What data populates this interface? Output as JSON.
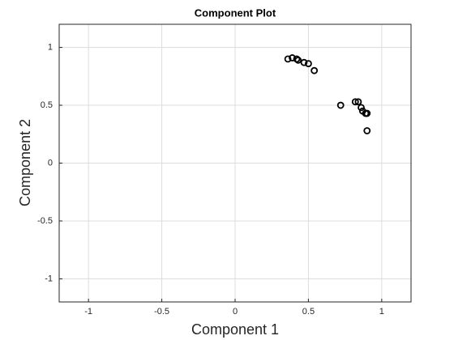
{
  "chart_data": {
    "type": "scatter",
    "title": "Component Plot",
    "xlabel": "Component 1",
    "ylabel": "Component 2",
    "x": [
      0.36,
      0.39,
      0.42,
      0.43,
      0.47,
      0.5,
      0.54,
      0.72,
      0.82,
      0.84,
      0.86,
      0.87,
      0.89,
      0.9,
      0.9
    ],
    "values": [
      0.9,
      0.91,
      0.9,
      0.89,
      0.87,
      0.86,
      0.8,
      0.5,
      0.53,
      0.53,
      0.48,
      0.45,
      0.43,
      0.43,
      0.28
    ],
    "color": "#000000",
    "xlim": [
      -1.2,
      1.2
    ],
    "ylim": [
      -1.2,
      1.2
    ],
    "xticks": [
      -1,
      -0.5,
      0,
      0.5,
      1
    ],
    "yticks": [
      -1,
      -0.5,
      0,
      0.5,
      1
    ],
    "grid": true
  }
}
